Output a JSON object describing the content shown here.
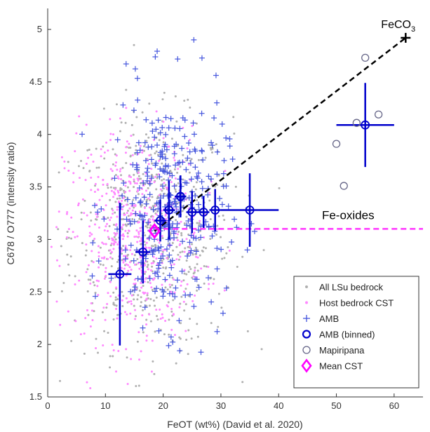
{
  "chart_data": {
    "type": "scatter",
    "title": "",
    "xlabel": "FeOT (wt%) (David et al. 2020)",
    "ylabel": "C678 / O777 (intensity ratio)",
    "xlim": [
      0,
      65
    ],
    "ylim": [
      1.5,
      5.2
    ],
    "xticks": [
      "0",
      "10",
      "20",
      "30",
      "40",
      "50",
      "60"
    ],
    "yticks": [
      "1.5",
      "2",
      "2.5",
      "3",
      "3.5",
      "4",
      "4.5",
      "5"
    ],
    "grid": false,
    "legend_position": "bottom-right",
    "annotations": {
      "feco3": {
        "label_main": "FeCO",
        "label_sub": "3",
        "x": 62,
        "y": 4.92
      },
      "fe_oxides": {
        "label": "Fe-oxides",
        "y": 3.1
      }
    },
    "trend_lines": [
      {
        "name": "FeCO3 line",
        "style": "dashed",
        "color": "#000000",
        "x": [
          18.5,
          62
        ],
        "y": [
          3.08,
          4.92
        ]
      },
      {
        "name": "Fe-oxides line",
        "style": "dashed",
        "color": "#ff33ff",
        "x": [
          18.5,
          65
        ],
        "y": [
          3.1,
          3.1
        ]
      }
    ],
    "series": [
      {
        "name": "All LSu bedrock",
        "marker": "dot",
        "color": "#b0b0b0",
        "generated": "dense cloud",
        "x_center": 18,
        "x_spread": 7,
        "y_center": 3.05,
        "y_spread": 0.55
      },
      {
        "name": "Host bedrock CST",
        "marker": "dot",
        "color": "#ff88ff",
        "generated": "dense cloud",
        "x_center": 15,
        "x_spread": 6,
        "y_center": 3.05,
        "y_spread": 0.5
      },
      {
        "name": "AMB",
        "marker": "plus",
        "color": "#4455dd",
        "generated": "dense cloud",
        "x_center": 21,
        "x_spread": 5,
        "y_center": 3.3,
        "y_spread": 0.55
      },
      {
        "name": "AMB (binned)",
        "marker": "circle-cross",
        "color": "#0000cc",
        "points": [
          {
            "x": 12.5,
            "y": 2.67,
            "xerr": 2.0,
            "yerr": 0.68
          },
          {
            "x": 16.5,
            "y": 2.88,
            "xerr": 1.3,
            "yerr": 0.3
          },
          {
            "x": 19.5,
            "y": 3.18,
            "xerr": 1.0,
            "yerr": 0.2
          },
          {
            "x": 21.0,
            "y": 3.28,
            "xerr": 1.0,
            "yerr": 0.28
          },
          {
            "x": 23.0,
            "y": 3.41,
            "xerr": 1.0,
            "yerr": 0.2
          },
          {
            "x": 25.0,
            "y": 3.26,
            "xerr": 1.0,
            "yerr": 0.2
          },
          {
            "x": 27.0,
            "y": 3.26,
            "xerr": 1.0,
            "yerr": 0.15
          },
          {
            "x": 29.0,
            "y": 3.28,
            "xerr": 1.0,
            "yerr": 0.2
          },
          {
            "x": 35.0,
            "y": 3.28,
            "xerr": 5.0,
            "yerr": 0.35
          },
          {
            "x": 55.0,
            "y": 4.09,
            "xerr": 5.0,
            "yerr": 0.4
          }
        ]
      },
      {
        "name": "Mapiripana",
        "marker": "circle",
        "color": "#666688",
        "points": [
          {
            "x": 50,
            "y": 3.91
          },
          {
            "x": 51.3,
            "y": 3.51
          },
          {
            "x": 53.5,
            "y": 4.11
          },
          {
            "x": 55,
            "y": 4.73
          },
          {
            "x": 57.3,
            "y": 4.19
          }
        ]
      },
      {
        "name": "Mean CST",
        "marker": "diamond",
        "color": "#ff00ff",
        "points": [
          {
            "x": 18.5,
            "y": 3.08
          }
        ]
      }
    ]
  }
}
